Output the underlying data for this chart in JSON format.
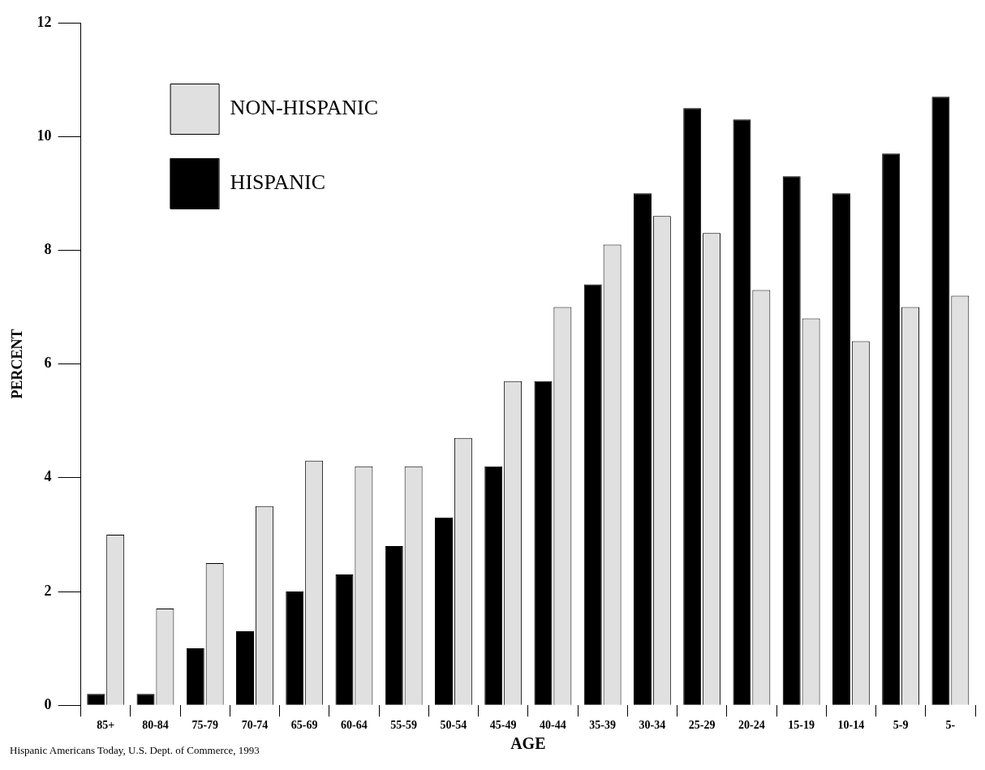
{
  "chart_data": {
    "type": "bar",
    "xlabel": "AGE",
    "ylabel": "PERCENT",
    "categories": [
      "85+",
      "80-84",
      "75-79",
      "70-74",
      "65-69",
      "60-64",
      "55-59",
      "50-54",
      "45-49",
      "40-44",
      "35-39",
      "30-34",
      "25-29",
      "20-24",
      "15-19",
      "10-14",
      "5-9",
      "5-"
    ],
    "series": [
      {
        "name": "HISPANIC",
        "color": "#000000",
        "values": [
          0.2,
          0.2,
          1.0,
          1.3,
          2.0,
          2.3,
          2.8,
          3.3,
          4.2,
          5.7,
          7.4,
          9.0,
          10.5,
          10.3,
          9.3,
          9.0,
          9.7,
          10.7
        ]
      },
      {
        "name": "NON-HISPANIC",
        "color": "#e0e0e0",
        "values": [
          3.0,
          1.7,
          2.5,
          3.5,
          4.3,
          4.2,
          4.2,
          4.7,
          5.7,
          7.0,
          8.1,
          8.6,
          8.3,
          7.3,
          6.8,
          6.4,
          7.0,
          7.2
        ]
      }
    ],
    "ylim": [
      0,
      12
    ],
    "yticks": [
      0,
      2,
      4,
      6,
      8,
      10,
      12
    ],
    "grid": false,
    "legend": "top left",
    "annotations": [
      "Hispanic Americans Today, U.S. Dept. of Commerce, 1993"
    ]
  }
}
